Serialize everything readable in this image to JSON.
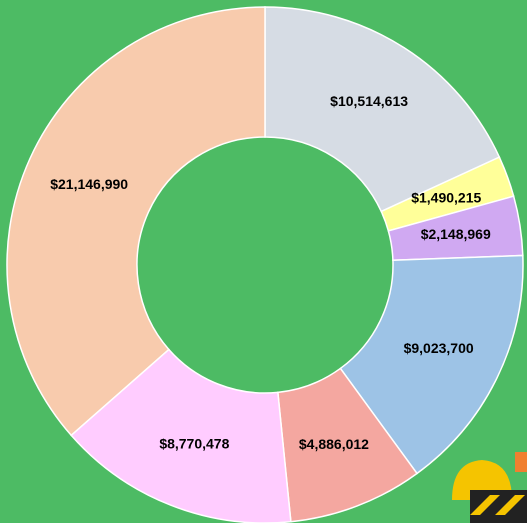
{
  "chart_data": {
    "type": "donut",
    "categories": [
      null,
      null,
      null,
      null,
      null,
      null,
      null
    ],
    "values": [
      10514613,
      1490215,
      2148969,
      9023700,
      4886012,
      8770478,
      21146990
    ],
    "value_labels": [
      "$10,514,613",
      "$1,490,215",
      "$2,148,969",
      "$9,023,700",
      "$4,886,012",
      "$8,770,478",
      "$21,146,990"
    ],
    "colors": [
      "#d6dce4",
      "#ffff99",
      "#d0a9f2",
      "#9dc3e6",
      "#f4a7a0",
      "#ffccff",
      "#f8cbad"
    ]
  }
}
